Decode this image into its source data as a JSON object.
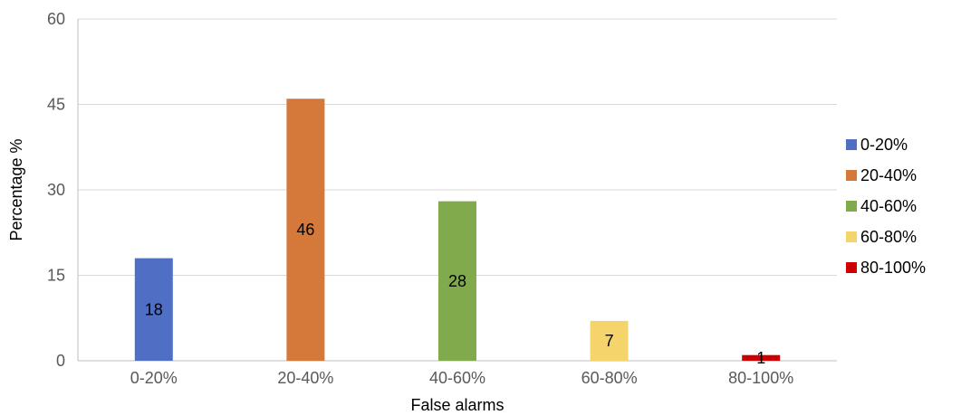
{
  "chart_data": {
    "type": "bar",
    "title": "",
    "xlabel": "False alarms",
    "ylabel": "Percentage %",
    "ylim": [
      0,
      60
    ],
    "yticks": [
      0,
      15,
      30,
      45,
      60
    ],
    "grid": true,
    "legend_position": "right",
    "categories": [
      "0-20%",
      "20-40%",
      "40-60%",
      "60-80%",
      "80-100%"
    ],
    "values": [
      18,
      46,
      28,
      7,
      1
    ],
    "colors": [
      "#4e6fc4",
      "#d4793a",
      "#80aa4c",
      "#f5d56b",
      "#cc0000"
    ],
    "legend": [
      "0-20%",
      "20-40%",
      "40-60%",
      "60-80%",
      "80-100%"
    ]
  }
}
